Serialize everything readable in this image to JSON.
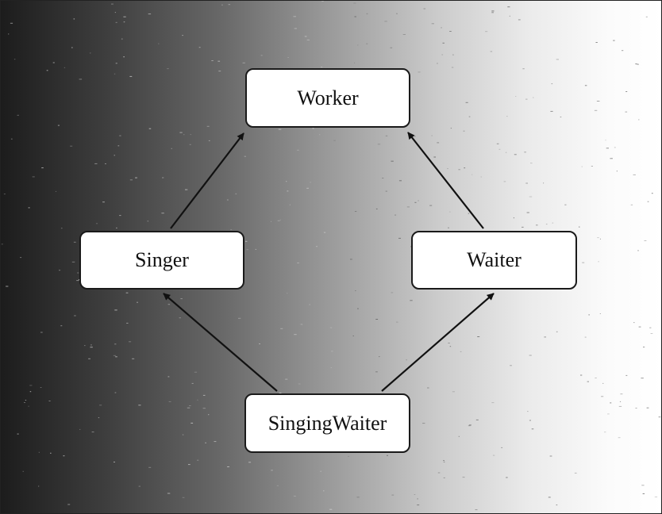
{
  "diagram": {
    "nodes": [
      {
        "id": "worker",
        "label": "Worker"
      },
      {
        "id": "singer",
        "label": "Singer"
      },
      {
        "id": "waiter",
        "label": "Waiter"
      },
      {
        "id": "singingwaiter",
        "label": "SingingWaiter"
      }
    ],
    "edges": [
      {
        "from": "singer",
        "to": "worker"
      },
      {
        "from": "waiter",
        "to": "worker"
      },
      {
        "from": "singingwaiter",
        "to": "singer"
      },
      {
        "from": "singingwaiter",
        "to": "waiter"
      }
    ]
  }
}
